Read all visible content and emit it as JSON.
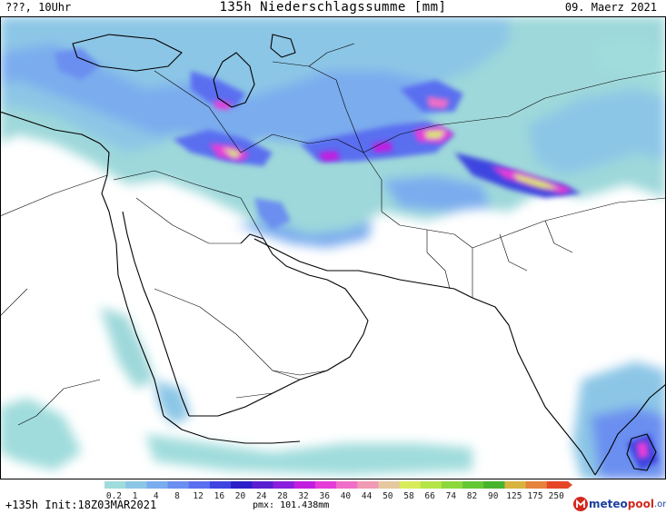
{
  "header": {
    "left": "???, 10Uhr",
    "title": "135h Niederschlagssumme [mm]",
    "right": "09. Maerz 2021"
  },
  "legend": {
    "ticks": [
      "0.2",
      "1",
      "4",
      "8",
      "12",
      "16",
      "20",
      "24",
      "28",
      "32",
      "36",
      "40",
      "44",
      "50",
      "58",
      "66",
      "74",
      "82",
      "90",
      "125",
      "175",
      "250"
    ],
    "colors": [
      "#a0dcdc",
      "#8cc6e6",
      "#7aacee",
      "#6a8ff0",
      "#5a6ef0",
      "#3e44e0",
      "#2a1ec8",
      "#5a1ed0",
      "#8a1edc",
      "#c21ee0",
      "#e63cd8",
      "#f06ec8",
      "#f09ab4",
      "#e6c8a0",
      "#d8ec5a",
      "#b4e446",
      "#8cd83c",
      "#64c832",
      "#46b42c",
      "#d8b43c",
      "#e6823c",
      "#e64628"
    ]
  },
  "footer": {
    "run": "+135h Init:18Z03MAR2021",
    "pmx": "pmx: 101.438mm"
  },
  "logo": {
    "part1": "meteo",
    "part2": "pool",
    "part3": ".org"
  }
}
